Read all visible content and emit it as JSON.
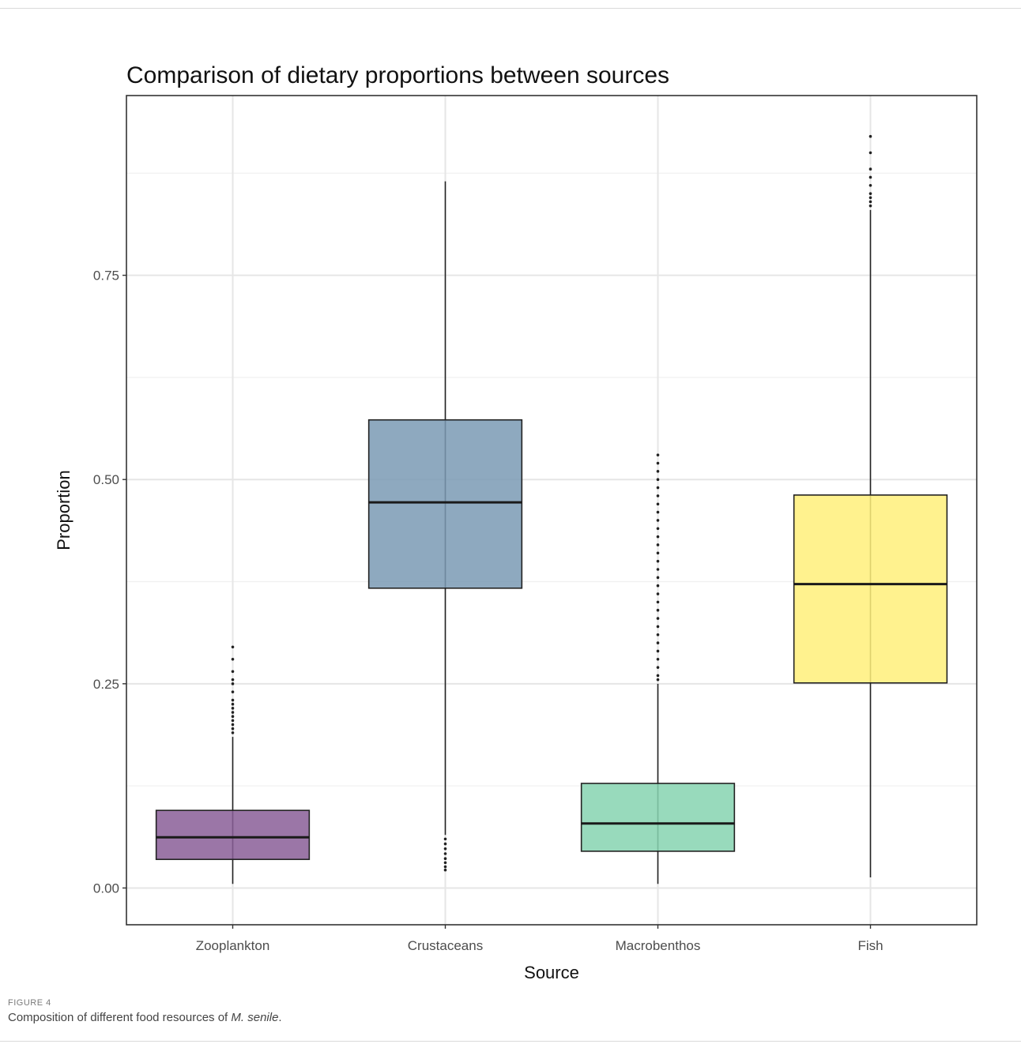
{
  "chart_data": {
    "type": "box",
    "title": "Comparison of dietary proportions between sources",
    "xlabel": "Source",
    "ylabel": "Proportion",
    "ylim": [
      -0.045,
      0.97
    ],
    "yticks": [
      0.0,
      0.25,
      0.5,
      0.75
    ],
    "ytick_labels": [
      "0.00",
      "0.25",
      "0.50",
      "0.75"
    ],
    "grid": true,
    "categories": [
      "Zooplankton",
      "Crustaceans",
      "Macrobenthos",
      "Fish"
    ],
    "boxes": [
      {
        "name": "Zooplankton",
        "min": 0.005,
        "q1": 0.035,
        "median": 0.062,
        "q3": 0.095,
        "max": 0.185,
        "color": "#8a5e98",
        "outliers": [
          0.19,
          0.195,
          0.2,
          0.205,
          0.21,
          0.215,
          0.22,
          0.225,
          0.23,
          0.24,
          0.25,
          0.255,
          0.265,
          0.28,
          0.295
        ]
      },
      {
        "name": "Crustaceans",
        "min": 0.065,
        "q1": 0.367,
        "median": 0.472,
        "q3": 0.573,
        "max": 0.865,
        "color": "#7a9ab4",
        "outliers": [
          0.022,
          0.026,
          0.031,
          0.036,
          0.042,
          0.048,
          0.054,
          0.06
        ]
      },
      {
        "name": "Macrobenthos",
        "min": 0.005,
        "q1": 0.045,
        "median": 0.079,
        "q3": 0.128,
        "max": 0.25,
        "color": "#86d3b0",
        "outliers": [
          0.255,
          0.26,
          0.27,
          0.28,
          0.29,
          0.3,
          0.31,
          0.32,
          0.33,
          0.34,
          0.35,
          0.36,
          0.37,
          0.38,
          0.39,
          0.4,
          0.41,
          0.42,
          0.43,
          0.44,
          0.45,
          0.46,
          0.47,
          0.48,
          0.49,
          0.5,
          0.51,
          0.52,
          0.53
        ]
      },
      {
        "name": "Fish",
        "min": 0.013,
        "q1": 0.251,
        "median": 0.372,
        "q3": 0.481,
        "max": 0.83,
        "color": "#fff07a",
        "outliers": [
          0.835,
          0.84,
          0.845,
          0.85,
          0.86,
          0.87,
          0.88,
          0.9,
          0.92
        ]
      }
    ]
  },
  "caption": {
    "label": "FIGURE 4",
    "text_before": "Composition of different food resources of ",
    "species": "M. senile",
    "text_after": "."
  }
}
